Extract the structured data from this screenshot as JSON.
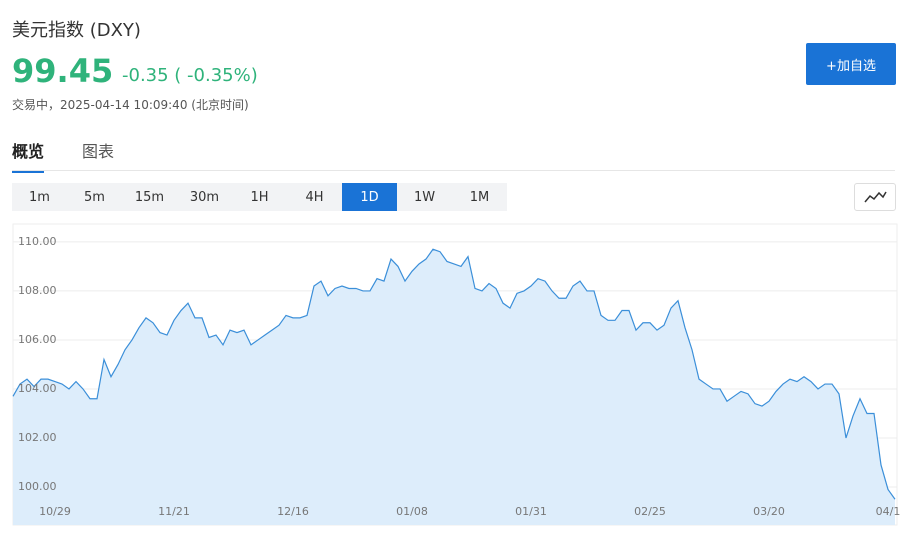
{
  "header": {
    "title": "美元指数 (DXY)",
    "price": "99.45",
    "change": "-0.35 ( -0.35%)",
    "status": "交易中，2025-04-14 10:09:40 (北京时间)",
    "button": "+加自选"
  },
  "tabs": {
    "items": [
      "概览",
      "图表"
    ],
    "active": 0
  },
  "periods": {
    "items": [
      "1m",
      "5m",
      "15m",
      "30m",
      "1H",
      "4H",
      "1D",
      "1W",
      "1M"
    ],
    "active": 6
  },
  "chart_data": {
    "type": "area",
    "color": "#3b8fd9",
    "fill": "#ddedfb",
    "grid": true,
    "categories": [
      null,
      null,
      null,
      null,
      null,
      null,
      "10/29",
      null,
      null,
      null,
      null,
      null,
      null,
      null,
      null,
      null,
      null,
      null,
      null,
      null,
      null,
      null,
      null,
      "11/21",
      null,
      null,
      null,
      null,
      null,
      null,
      null,
      null,
      null,
      null,
      null,
      null,
      null,
      null,
      null,
      null,
      "12/16",
      null,
      null,
      null,
      null,
      null,
      null,
      null,
      null,
      null,
      null,
      null,
      null,
      null,
      null,
      null,
      null,
      "01/08",
      null,
      null,
      null,
      null,
      null,
      null,
      null,
      null,
      null,
      null,
      null,
      null,
      null,
      null,
      null,
      null,
      "01/31",
      null,
      null,
      null,
      null,
      null,
      null,
      null,
      null,
      null,
      null,
      null,
      null,
      null,
      null,
      null,
      null,
      "02/25",
      null,
      null,
      null,
      null,
      null,
      null,
      null,
      null,
      null,
      null,
      null,
      null,
      null,
      null,
      null,
      null,
      "03/20",
      null,
      null,
      null,
      null,
      null,
      null,
      null,
      null,
      null,
      null,
      null,
      null,
      null,
      null,
      null,
      null,
      "04/1",
      null
    ],
    "values": [
      103.7,
      104.2,
      104.4,
      104.1,
      104.4,
      104.4,
      104.3,
      104.2,
      104.0,
      104.3,
      104.0,
      103.6,
      103.6,
      105.2,
      104.5,
      105.0,
      105.6,
      106.0,
      106.5,
      106.9,
      106.7,
      106.3,
      106.2,
      106.8,
      107.2,
      107.5,
      106.9,
      106.9,
      106.1,
      106.2,
      105.8,
      106.4,
      106.3,
      106.4,
      105.8,
      106.0,
      106.2,
      106.4,
      106.6,
      107.0,
      106.9,
      106.9,
      107.0,
      108.2,
      108.4,
      107.8,
      108.1,
      108.2,
      108.1,
      108.1,
      108.0,
      108.0,
      108.5,
      108.4,
      109.3,
      109.0,
      108.4,
      108.8,
      109.1,
      109.3,
      109.7,
      109.6,
      109.2,
      109.1,
      109.0,
      109.4,
      108.1,
      108.0,
      108.3,
      108.1,
      107.5,
      107.3,
      107.9,
      108.0,
      108.2,
      108.5,
      108.4,
      108.0,
      107.7,
      107.7,
      108.2,
      108.4,
      108.0,
      108.0,
      107.0,
      106.8,
      106.8,
      107.2,
      107.2,
      106.4,
      106.7,
      106.7,
      106.4,
      106.6,
      107.3,
      107.6,
      106.5,
      105.6,
      104.4,
      104.2,
      104.0,
      104.0,
      103.5,
      103.7,
      103.9,
      103.8,
      103.4,
      103.3,
      103.5,
      103.9,
      104.2,
      104.4,
      104.3,
      104.5,
      104.3,
      104.0,
      104.2,
      104.2,
      103.8,
      102.0,
      102.9,
      103.6,
      103.0,
      103.0,
      100.9,
      99.9,
      99.5
    ],
    "ylim": [
      98.45,
      110.73
    ],
    "yticks": [
      {
        "value": 100,
        "label": "100.00"
      },
      {
        "value": 102,
        "label": "102.00"
      },
      {
        "value": 104,
        "label": "104.00"
      },
      {
        "value": 106,
        "label": "106.00"
      },
      {
        "value": 108,
        "label": "108.00"
      },
      {
        "value": 110,
        "label": "110.00"
      }
    ]
  }
}
